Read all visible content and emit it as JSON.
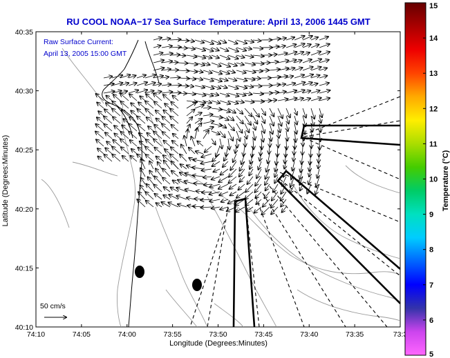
{
  "title": "RU COOL  NOAA−17  Sea Surface Temperature:  April 13, 2006 1445 GMT",
  "annotation": {
    "line1": "Raw Surface Current:",
    "line2": "April 13, 2005 15:00 GMT"
  },
  "axes": {
    "xlabel": "Longitude (Degrees:Minutes)",
    "ylabel": "Latitude (Degrees:Minutes)",
    "x_ticks": [
      "74:10",
      "74:05",
      "74:00",
      "73:55",
      "73:50",
      "73:45",
      "73:40",
      "73:35",
      "73:3"
    ],
    "y_ticks": [
      "40:35",
      "40:30",
      "40:25",
      "40:20",
      "40:15",
      "40:10"
    ]
  },
  "colorbar": {
    "label": "Temperature (°C)",
    "ticks": [
      "15",
      "14",
      "13",
      "12",
      "11",
      "10",
      "9",
      "8",
      "7",
      "6",
      "5"
    ],
    "min": 5,
    "max": 15,
    "stops": [
      "#ff66ff",
      "#cc44ee",
      "#3333aa",
      "#0000ff",
      "#0066ff",
      "#00ccff",
      "#00e0c0",
      "#00cc66",
      "#44cc00",
      "#aadd00",
      "#ffee00",
      "#ffaa00",
      "#ff4400",
      "#ee0000",
      "#aa0000",
      "#660000"
    ]
  },
  "scale": {
    "label": "50 cm/s"
  },
  "chart_data": {
    "type": "map",
    "xlim_deg": [
      -74.1667,
      -73.5
    ],
    "ylim_deg": [
      40.1667,
      40.5833
    ],
    "colorbar_range": [
      5,
      15
    ],
    "moorings": [
      {
        "lon": "73:59",
        "lat": "40:14.6"
      },
      {
        "lon": "73:52.2",
        "lat": "40:13.5"
      }
    ]
  }
}
